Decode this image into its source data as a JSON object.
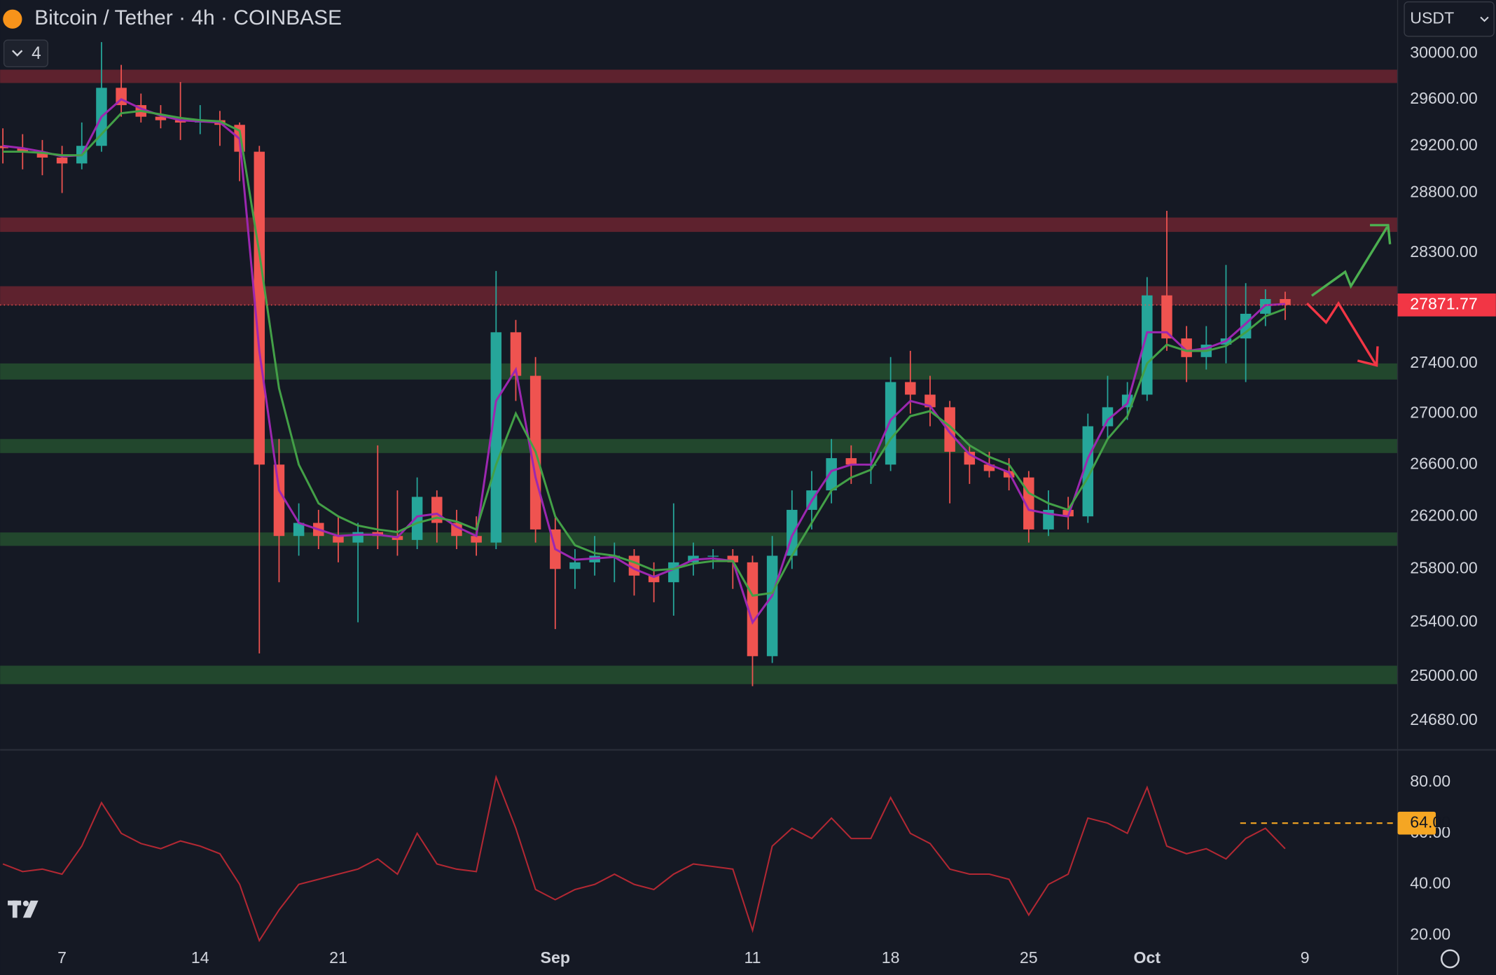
{
  "chart_data": {
    "type": "candlestick",
    "title": "Bitcoin / Tether · 4h · COINBASE",
    "indicator_count": "4",
    "currency": "USDT",
    "log_scale": true,
    "grid": false,
    "x": [
      -3,
      -2,
      -1,
      0,
      1,
      2,
      3,
      4,
      5,
      6,
      7,
      8,
      9,
      10,
      11,
      12,
      13,
      14,
      15,
      16,
      17,
      18,
      19,
      20,
      21,
      22,
      23,
      24,
      25,
      26,
      27,
      28,
      29,
      30,
      31,
      32,
      33,
      34,
      35,
      36,
      37,
      38,
      39,
      40,
      41,
      42,
      43,
      44,
      45,
      46,
      47,
      48,
      49,
      50,
      51,
      52,
      53,
      54,
      55,
      56,
      57,
      58,
      59,
      60,
      61,
      62
    ],
    "open": [
      29200,
      29180,
      29150,
      29100,
      29050,
      29200,
      29700,
      29550,
      29450,
      29420,
      29400,
      29420,
      29380,
      29150,
      26600,
      26050,
      26150,
      26050,
      26000,
      26080,
      26050,
      26020,
      26350,
      26150,
      26050,
      26000,
      27650,
      27300,
      26100,
      25800,
      25850,
      25900,
      25900,
      25750,
      25700,
      25850,
      25900,
      25900,
      25850,
      25150,
      25900,
      26250,
      26400,
      26650,
      26600,
      26600,
      27250,
      27150,
      27050,
      26700,
      26600,
      26550,
      26500,
      26100,
      26250,
      26200,
      26900,
      27050,
      27150,
      27950,
      27600,
      27450,
      27550,
      27600,
      27800,
      27920
    ],
    "high": [
      29350,
      29300,
      29250,
      29200,
      29400,
      30100,
      29900,
      29650,
      29550,
      29750,
      29550,
      29500,
      29400,
      29200,
      26800,
      26300,
      26250,
      26200,
      26150,
      26750,
      26400,
      26500,
      26400,
      26250,
      26200,
      28150,
      27750,
      27450,
      26200,
      25950,
      26050,
      26000,
      25950,
      25850,
      26300,
      26000,
      25950,
      25950,
      25900,
      26050,
      26400,
      26550,
      26800,
      26750,
      26700,
      27450,
      27500,
      27300,
      27100,
      26750,
      26700,
      26650,
      26550,
      26400,
      26350,
      27000,
      27300,
      27250,
      28100,
      28650,
      27700,
      27700,
      28200,
      28050,
      28000,
      27980
    ],
    "low": [
      29050,
      29000,
      28950,
      28800,
      29000,
      29150,
      29450,
      29400,
      29350,
      29250,
      29300,
      29200,
      28900,
      25170,
      25700,
      25900,
      25950,
      25850,
      25400,
      25950,
      25900,
      25950,
      26000,
      25950,
      25900,
      25950,
      27100,
      26000,
      25350,
      25650,
      25750,
      25700,
      25600,
      25550,
      25450,
      25750,
      25800,
      25650,
      24930,
      25100,
      25800,
      26100,
      26300,
      26450,
      26450,
      26550,
      27000,
      26900,
      26300,
      26450,
      26500,
      26400,
      26000,
      26050,
      26100,
      26150,
      26800,
      26950,
      27100,
      27500,
      27250,
      27350,
      27400,
      27250,
      27700,
      27750
    ],
    "close": [
      29180,
      29150,
      29100,
      29050,
      29200,
      29700,
      29550,
      29450,
      29420,
      29400,
      29420,
      29380,
      29150,
      26600,
      26050,
      26150,
      26050,
      26000,
      26080,
      26050,
      26020,
      26350,
      26150,
      26050,
      26000,
      27650,
      27300,
      26100,
      25800,
      25850,
      25900,
      25900,
      25750,
      25700,
      25850,
      25900,
      25900,
      25850,
      25150,
      25900,
      26250,
      26400,
      26650,
      26600,
      26600,
      27250,
      27150,
      27050,
      26700,
      26600,
      26550,
      26500,
      26100,
      26250,
      26200,
      26900,
      27050,
      27150,
      27950,
      27600,
      27450,
      27550,
      27600,
      27800,
      27920,
      27871.77
    ],
    "up_color": "#26a69a",
    "down_color": "#ef5350",
    "series": [
      {
        "color": "#9c27b0",
        "values": [
          29200,
          29180,
          29150,
          29110,
          29120,
          29450,
          29600,
          29520,
          29460,
          29420,
          29410,
          29400,
          29260,
          27500,
          26400,
          26150,
          26100,
          26050,
          26060,
          26060,
          26040,
          26200,
          26220,
          26120,
          26050,
          27100,
          27350,
          26500,
          25950,
          25870,
          25880,
          25890,
          25800,
          25740,
          25800,
          25870,
          25880,
          25860,
          25400,
          25600,
          26050,
          26320,
          26550,
          26600,
          26600,
          26950,
          27100,
          27060,
          26850,
          26680,
          26600,
          26540,
          26250,
          26220,
          26200,
          26650,
          26950,
          27080,
          27650,
          27650,
          27500,
          27520,
          27580,
          27720,
          27870,
          27880
        ]
      },
      {
        "color": "#43a047",
        "values": [
          29150,
          29150,
          29140,
          29120,
          29120,
          29300,
          29480,
          29500,
          29470,
          29440,
          29420,
          29410,
          29330,
          28300,
          27200,
          26600,
          26300,
          26200,
          26130,
          26100,
          26080,
          26150,
          26190,
          26160,
          26100,
          26600,
          27000,
          26700,
          26200,
          25980,
          25920,
          25900,
          25850,
          25790,
          25800,
          25840,
          25860,
          25860,
          25600,
          25620,
          25900,
          26150,
          26400,
          26500,
          26560,
          26800,
          26980,
          27020,
          26900,
          26750,
          26660,
          26600,
          26380,
          26300,
          26250,
          26500,
          26800,
          26980,
          27400,
          27550,
          27500,
          27500,
          27540,
          27650,
          27780,
          27840
        ]
      }
    ],
    "zones": [
      {
        "low": 29742,
        "high": 29858,
        "color": "#6b2430"
      },
      {
        "low": 28474,
        "high": 28594,
        "color": "#6b2430"
      },
      {
        "low": 27869,
        "high": 28025,
        "color": "#6b2430"
      },
      {
        "low": 27270,
        "high": 27399,
        "color": "#24502f"
      },
      {
        "low": 26690,
        "high": 26800,
        "color": "#24502f"
      },
      {
        "low": 25975,
        "high": 26077,
        "color": "#24502f"
      },
      {
        "low": 24945,
        "high": 25080,
        "color": "#24502f"
      }
    ],
    "last_price": 27871.77,
    "ylim": [
      24470,
      30473
    ],
    "yticks": [
      {
        "value": 30000,
        "label": "30000.00"
      },
      {
        "value": 29600,
        "label": "29600.00"
      },
      {
        "value": 29200,
        "label": "29200.00"
      },
      {
        "value": 28800,
        "label": "28800.00"
      },
      {
        "value": 28300,
        "label": "28300.00"
      },
      {
        "value": 27400,
        "label": "27400.00"
      },
      {
        "value": 27000,
        "label": "27000.00"
      },
      {
        "value": 26600,
        "label": "26600.00"
      },
      {
        "value": 26200,
        "label": "26200.00"
      },
      {
        "value": 25800,
        "label": "25800.00"
      },
      {
        "value": 25400,
        "label": "25400.00"
      },
      {
        "value": 25000,
        "label": "25000.00"
      },
      {
        "value": 24680,
        "label": "24680.00"
      }
    ],
    "xlim": [
      -3.14,
      67.7
    ],
    "xticks": [
      {
        "value": 0,
        "label": "7"
      },
      {
        "value": 7,
        "label": "14"
      },
      {
        "value": 14,
        "label": "21"
      },
      {
        "value": 25,
        "label": "Sep"
      },
      {
        "value": 35,
        "label": "11"
      },
      {
        "value": 42,
        "label": "18"
      },
      {
        "value": 49,
        "label": "25"
      },
      {
        "value": 55,
        "label": "Oct"
      },
      {
        "value": 63,
        "label": "9"
      }
    ],
    "rsi": {
      "color": "#b22833",
      "values": [
        48,
        45,
        46,
        44,
        55,
        72,
        60,
        56,
        54,
        57,
        55,
        52,
        40,
        18,
        30,
        40,
        42,
        44,
        46,
        50,
        44,
        60,
        48,
        46,
        45,
        82,
        62,
        38,
        34,
        38,
        40,
        44,
        40,
        38,
        44,
        48,
        47,
        46,
        22,
        55,
        62,
        58,
        66,
        58,
        58,
        74,
        60,
        56,
        46,
        44,
        44,
        42,
        28,
        40,
        44,
        66,
        64,
        60,
        78,
        55,
        52,
        54,
        50,
        58,
        62,
        54
      ],
      "ylim": [
        14.6,
        92.7
      ],
      "yticks": [
        {
          "value": 80,
          "label": "80.00"
        },
        {
          "value": 60,
          "label": "60.00"
        },
        {
          "value": 40,
          "label": "40.00"
        },
        {
          "value": 20,
          "label": "20.00"
        }
      ],
      "level": {
        "value": 64,
        "label": "64.00",
        "color": "#f5a623"
      }
    }
  }
}
